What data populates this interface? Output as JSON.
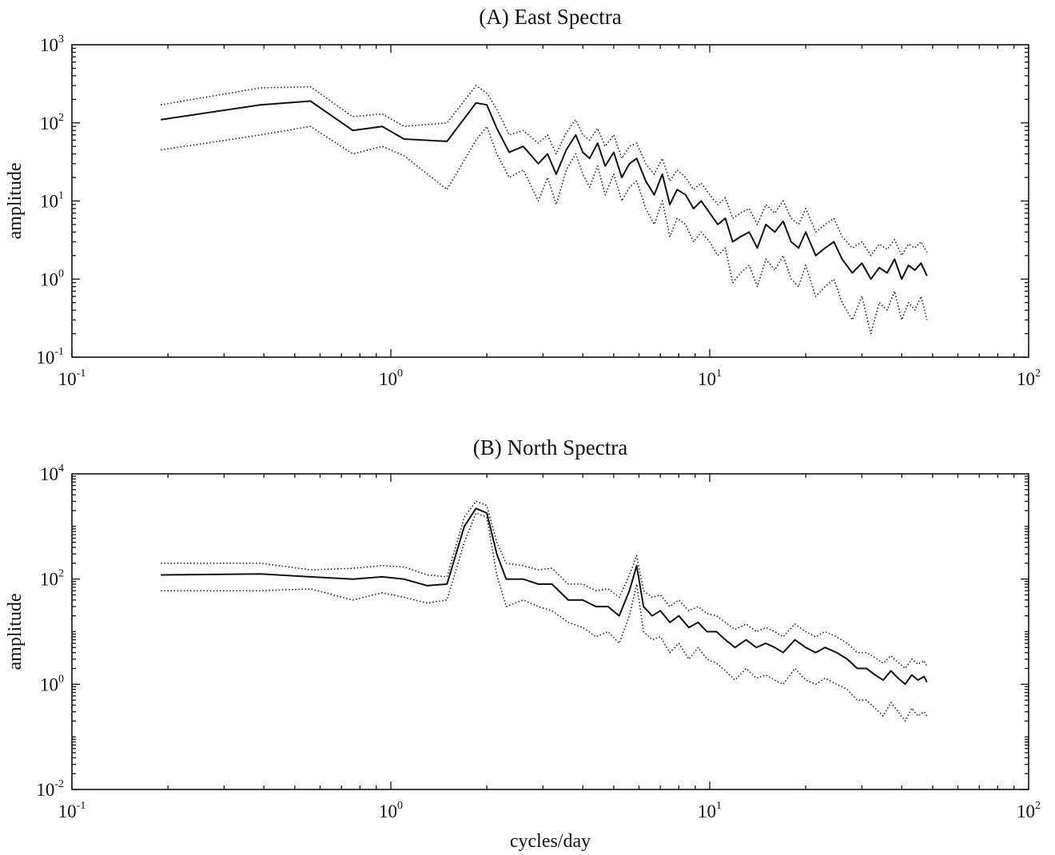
{
  "chart_data": [
    {
      "type": "line",
      "title": "(A) East Spectra",
      "xlabel": "",
      "ylabel": "amplitude",
      "xscale": "log",
      "yscale": "log",
      "xlim": [
        0.1,
        100
      ],
      "ylim": [
        0.1,
        1000
      ],
      "x_ticks": [
        {
          "base": "10",
          "exp": "-1"
        },
        {
          "base": "10",
          "exp": "0"
        },
        {
          "base": "10",
          "exp": "1"
        },
        {
          "base": "10",
          "exp": "2"
        }
      ],
      "y_ticks": [
        {
          "base": "10",
          "exp": "-1"
        },
        {
          "base": "10",
          "exp": "0"
        },
        {
          "base": "10",
          "exp": "1"
        },
        {
          "base": "10",
          "exp": "2"
        },
        {
          "base": "10",
          "exp": "3"
        }
      ],
      "grid": false,
      "legend": "none",
      "series": [
        {
          "style": "solid",
          "x": [
            0.19,
            0.39,
            0.56,
            0.76,
            0.94,
            1.1,
            1.5,
            1.85,
            2.0,
            2.15,
            2.35,
            2.6,
            2.9,
            3.1,
            3.3,
            3.55,
            3.8,
            4.0,
            4.2,
            4.45,
            4.7,
            5.0,
            5.3,
            5.6,
            5.9,
            6.3,
            6.7,
            7.1,
            7.5,
            7.9,
            8.4,
            8.9,
            9.4,
            10.0,
            10.6,
            11.2,
            11.8,
            12.5,
            13.3,
            14.1,
            15.0,
            16.0,
            17.0,
            18.0,
            19.0,
            20.0,
            21.5,
            23.0,
            24.5,
            26.0,
            28.0,
            30.0,
            32.0,
            34.0,
            36.0,
            38.0,
            40.0,
            42.0,
            44.0,
            46.0,
            48.0
          ],
          "y": [
            110,
            170,
            190,
            80,
            90,
            62,
            58,
            180,
            170,
            85,
            42,
            50,
            30,
            40,
            22,
            45,
            70,
            42,
            35,
            55,
            28,
            42,
            20,
            30,
            35,
            18,
            12,
            22,
            9,
            14,
            12,
            8,
            10,
            7,
            5,
            6,
            3,
            3.5,
            4,
            2.5,
            5,
            4,
            5.5,
            3,
            2.5,
            4,
            2,
            2.5,
            3,
            1.8,
            1.2,
            1.6,
            1.0,
            1.4,
            1.2,
            1.8,
            1.0,
            1.5,
            1.3,
            1.6,
            1.1
          ]
        },
        {
          "style": "dotted",
          "x": [
            0.19,
            0.39,
            0.56,
            0.76,
            0.94,
            1.1,
            1.5,
            1.85,
            2.0,
            2.15,
            2.35,
            2.6,
            2.9,
            3.1,
            3.3,
            3.55,
            3.8,
            4.0,
            4.2,
            4.45,
            4.7,
            5.0,
            5.3,
            5.6,
            5.9,
            6.3,
            6.7,
            7.1,
            7.5,
            7.9,
            8.4,
            8.9,
            9.4,
            10.0,
            10.6,
            11.2,
            11.8,
            12.5,
            13.3,
            14.1,
            15.0,
            16.0,
            17.0,
            18.0,
            19.0,
            20.0,
            21.5,
            23.0,
            24.5,
            26.0,
            28.0,
            30.0,
            32.0,
            34.0,
            36.0,
            38.0,
            40.0,
            42.0,
            44.0,
            46.0,
            48.0
          ],
          "y": [
            170,
            280,
            290,
            120,
            130,
            90,
            100,
            300,
            240,
            150,
            70,
            80,
            55,
            70,
            40,
            75,
            110,
            70,
            60,
            85,
            50,
            70,
            35,
            50,
            55,
            30,
            22,
            35,
            18,
            25,
            20,
            14,
            17,
            12,
            9,
            11,
            6,
            7,
            8,
            5,
            9,
            7,
            10,
            6,
            5,
            8,
            4,
            5,
            6,
            3.5,
            2.5,
            3,
            2,
            2.8,
            2.4,
            3.2,
            2,
            2.8,
            2.5,
            3,
            2.2
          ]
        },
        {
          "style": "dotted",
          "x": [
            0.19,
            0.39,
            0.56,
            0.76,
            0.94,
            1.1,
            1.5,
            1.85,
            2.0,
            2.15,
            2.35,
            2.6,
            2.9,
            3.1,
            3.3,
            3.55,
            3.8,
            4.0,
            4.2,
            4.45,
            4.7,
            5.0,
            5.3,
            5.6,
            5.9,
            6.3,
            6.7,
            7.1,
            7.5,
            7.9,
            8.4,
            8.9,
            9.4,
            10.0,
            10.6,
            11.2,
            11.8,
            12.5,
            13.3,
            14.1,
            15.0,
            16.0,
            17.0,
            18.0,
            19.0,
            20.0,
            21.5,
            23.0,
            24.5,
            26.0,
            28.0,
            30.0,
            32.0,
            34.0,
            36.0,
            38.0,
            40.0,
            42.0,
            44.0,
            46.0,
            48.0
          ],
          "y": [
            45,
            70,
            90,
            40,
            50,
            38,
            14,
            60,
            90,
            40,
            20,
            25,
            10,
            20,
            9,
            25,
            40,
            22,
            15,
            28,
            12,
            22,
            10,
            15,
            18,
            8,
            5,
            10,
            3.5,
            6,
            5,
            3,
            4,
            3,
            2,
            2.5,
            0.9,
            1.2,
            1.5,
            0.8,
            1.8,
            1.3,
            2,
            1,
            0.8,
            1.5,
            0.6,
            0.8,
            1,
            0.5,
            0.3,
            0.6,
            0.2,
            0.5,
            0.4,
            0.7,
            0.3,
            0.5,
            0.4,
            0.6,
            0.3
          ]
        }
      ]
    },
    {
      "type": "line",
      "title": "(B) North Spectra",
      "xlabel": "cycles/day",
      "ylabel": "amplitude",
      "xscale": "log",
      "yscale": "log",
      "xlim": [
        0.1,
        100
      ],
      "ylim": [
        0.01,
        10000
      ],
      "x_ticks": [
        {
          "base": "10",
          "exp": "-1"
        },
        {
          "base": "10",
          "exp": "0"
        },
        {
          "base": "10",
          "exp": "1"
        },
        {
          "base": "10",
          "exp": "2"
        }
      ],
      "y_ticks": [
        {
          "base": "10",
          "exp": "-2"
        },
        {
          "base": "10",
          "exp": "0"
        },
        {
          "base": "10",
          "exp": "2"
        },
        {
          "base": "10",
          "exp": "4"
        }
      ],
      "grid": false,
      "legend": "none",
      "series": [
        {
          "style": "solid",
          "x": [
            0.19,
            0.39,
            0.56,
            0.76,
            0.94,
            1.1,
            1.3,
            1.5,
            1.7,
            1.85,
            2.0,
            2.15,
            2.3,
            2.6,
            2.9,
            3.2,
            3.6,
            4.0,
            4.4,
            4.8,
            5.2,
            5.6,
            5.9,
            6.2,
            6.6,
            7.0,
            7.5,
            8.0,
            8.6,
            9.2,
            9.8,
            10.5,
            11.2,
            12.0,
            13.0,
            14.0,
            15.0,
            16.0,
            17.0,
            18.5,
            20.0,
            21.5,
            23.0,
            25.0,
            27.0,
            29.0,
            31.0,
            33.0,
            35.0,
            37.0,
            39.0,
            41.0,
            43.0,
            45.0,
            47.0,
            48.0
          ],
          "y": [
            120,
            125,
            110,
            100,
            110,
            100,
            75,
            80,
            1000,
            2200,
            1800,
            300,
            100,
            100,
            80,
            80,
            40,
            40,
            30,
            30,
            20,
            60,
            180,
            30,
            20,
            25,
            15,
            20,
            12,
            15,
            10,
            10,
            7,
            5,
            7,
            5,
            6,
            5,
            4,
            7,
            5,
            4,
            5,
            4,
            3,
            2,
            2,
            1.5,
            1.2,
            1.8,
            1.3,
            1.0,
            1.5,
            1.2,
            1.4,
            1.1
          ]
        },
        {
          "style": "dotted",
          "x": [
            0.19,
            0.39,
            0.56,
            0.76,
            0.94,
            1.1,
            1.3,
            1.5,
            1.7,
            1.85,
            2.0,
            2.15,
            2.3,
            2.6,
            2.9,
            3.2,
            3.6,
            4.0,
            4.4,
            4.8,
            5.2,
            5.6,
            5.9,
            6.2,
            6.6,
            7.0,
            7.5,
            8.0,
            8.6,
            9.2,
            9.8,
            10.5,
            11.2,
            12.0,
            13.0,
            14.0,
            15.0,
            16.0,
            17.0,
            18.5,
            20.0,
            21.5,
            23.0,
            25.0,
            27.0,
            29.0,
            31.0,
            33.0,
            35.0,
            37.0,
            39.0,
            41.0,
            43.0,
            45.0,
            47.0,
            48.0
          ],
          "y": [
            200,
            200,
            150,
            160,
            180,
            170,
            120,
            110,
            1500,
            3000,
            2500,
            500,
            200,
            180,
            150,
            160,
            80,
            80,
            60,
            65,
            45,
            120,
            280,
            60,
            45,
            50,
            30,
            40,
            25,
            30,
            22,
            20,
            15,
            11,
            14,
            10,
            12,
            10,
            8,
            14,
            10,
            8,
            10,
            8,
            6,
            4,
            4,
            3.2,
            2.5,
            3.5,
            2.6,
            2.0,
            3.0,
            2.4,
            2.8,
            2.2
          ]
        },
        {
          "style": "dotted",
          "x": [
            0.19,
            0.39,
            0.56,
            0.76,
            0.94,
            1.1,
            1.3,
            1.5,
            1.7,
            1.85,
            2.0,
            2.15,
            2.3,
            2.6,
            2.9,
            3.2,
            3.6,
            4.0,
            4.4,
            4.8,
            5.2,
            5.6,
            5.9,
            6.2,
            6.6,
            7.0,
            7.5,
            8.0,
            8.6,
            9.2,
            9.8,
            10.5,
            11.2,
            12.0,
            13.0,
            14.0,
            15.0,
            16.0,
            17.0,
            18.5,
            20.0,
            21.5,
            23.0,
            25.0,
            27.0,
            29.0,
            31.0,
            33.0,
            35.0,
            37.0,
            39.0,
            41.0,
            43.0,
            45.0,
            47.0,
            48.0
          ],
          "y": [
            60,
            60,
            65,
            40,
            55,
            45,
            35,
            40,
            500,
            1800,
            1500,
            120,
            30,
            40,
            30,
            25,
            15,
            12,
            8,
            10,
            6,
            20,
            80,
            10,
            7,
            8,
            4,
            6,
            3,
            5,
            3,
            2.5,
            1.8,
            1.2,
            2,
            1.3,
            1.5,
            1.2,
            1,
            2,
            1.2,
            1,
            1.3,
            1,
            0.8,
            0.5,
            0.5,
            0.35,
            0.25,
            0.45,
            0.3,
            0.2,
            0.35,
            0.25,
            0.3,
            0.25
          ]
        }
      ]
    }
  ]
}
